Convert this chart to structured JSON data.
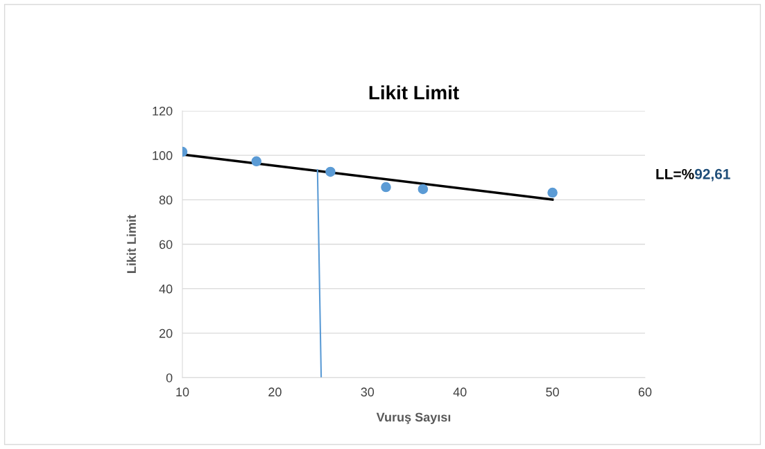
{
  "chart_data": {
    "type": "scatter",
    "title": "Likit Limit",
    "xlabel": "Vuruş Sayısı",
    "ylabel": "Likit Limit",
    "xlim": [
      10,
      60
    ],
    "xticks": [
      10,
      20,
      30,
      40,
      50,
      60
    ],
    "ylim": [
      0,
      120
    ],
    "yticks": [
      0,
      20,
      40,
      60,
      80,
      100,
      120
    ],
    "grid": "y",
    "marker": "circle",
    "series": [
      {
        "color": "#5b9bd5",
        "x": [
          10,
          18,
          26,
          32,
          36,
          50
        ],
        "values": [
          101.6,
          97.3,
          92.6,
          85.7,
          84.8,
          83.2
        ]
      },
      {
        "type": "line",
        "color": "#000000",
        "marker": "none",
        "x": [
          10,
          50
        ],
        "values": [
          100.4,
          80.1
        ]
      },
      {
        "type": "line",
        "color": "#5b9bd5",
        "marker": "none",
        "x": [
          24.6,
          25
        ],
        "values": [
          93.5,
          0
        ]
      }
    ],
    "annotations": [
      "LL=%",
      "92,61"
    ]
  }
}
